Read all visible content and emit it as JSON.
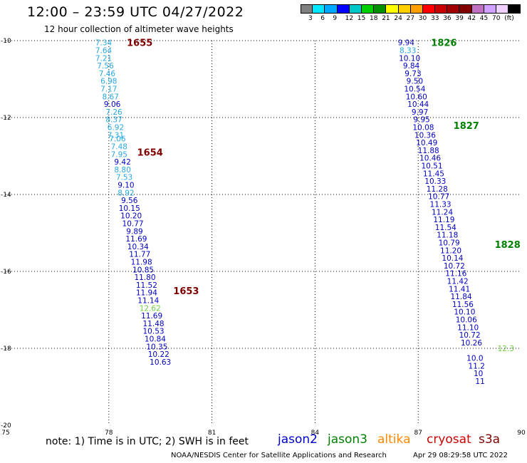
{
  "title": "12:00 – 23:59 UTC 04/27/2022",
  "subtitle": "12 hour collection of altimeter wave heights",
  "colorbar": {
    "colors": [
      "#808080",
      "#00e8ff",
      "#00a8ff",
      "#0000ff",
      "#00c8c8",
      "#00d000",
      "#009000",
      "#ffff00",
      "#ffd000",
      "#ffa000",
      "#ff0000",
      "#c80000",
      "#a00000",
      "#800000",
      "#c070c0",
      "#d0a0ff",
      "#f0d0ff",
      "#000000"
    ],
    "labels": [
      "3",
      "6",
      "9",
      "12",
      "15",
      "18",
      "21",
      "24",
      "27",
      "30",
      "33",
      "36",
      "39",
      "42",
      "45",
      "70",
      "(ft)"
    ]
  },
  "note": "note:  1) Time is in UTC;  2) SWH is in feet",
  "satellites": [
    {
      "name": "jason2",
      "color": "#0000cc"
    },
    {
      "name": "jason3",
      "color": "#008000"
    },
    {
      "name": "altika",
      "color": "#ff8800"
    },
    {
      "name": "cryosat",
      "color": "#cc0000"
    },
    {
      "name": "s3a",
      "color": "#800000"
    }
  ],
  "footer_left": "NOAA/NESDIS Center for Satellite Applications and Research",
  "footer_right": "Apr 29 08:29:58 UTC 2022",
  "chart_data": {
    "type": "scatter",
    "xlim": [
      75,
      90
    ],
    "ylim": [
      -20,
      -10
    ],
    "xticks": [
      75,
      78,
      81,
      84,
      87,
      90
    ],
    "yticks": [
      -10,
      -12,
      -14,
      -16,
      -18,
      -20
    ],
    "xtick_labels": [
      "75",
      "78",
      "81",
      "84",
      "87",
      "90"
    ],
    "ytick_labels": [
      "-10",
      "-12",
      "-14",
      "-16",
      "-18",
      "-20"
    ],
    "grid": true,
    "pass_labels": [
      {
        "text": "1655",
        "x": 78.9,
        "y": -10.05,
        "color": "#800000"
      },
      {
        "text": "1654",
        "x": 79.2,
        "y": -12.9,
        "color": "#800000"
      },
      {
        "text": "1653",
        "x": 80.25,
        "y": -16.5,
        "color": "#800000"
      },
      {
        "text": "1826",
        "x": 87.75,
        "y": -10.05,
        "color": "#008000"
      },
      {
        "text": "1827",
        "x": 88.4,
        "y": -12.2,
        "color": "#008000"
      },
      {
        "text": "1828",
        "x": 89.6,
        "y": -15.3,
        "color": "#008000"
      }
    ],
    "series": [
      {
        "color": "#29a8e0",
        "points": [
          {
            "x": 77.85,
            "y": -10.05,
            "label": "7.34"
          },
          {
            "x": 77.85,
            "y": -10.25,
            "label": "7.64"
          },
          {
            "x": 77.85,
            "y": -10.45,
            "label": "7.21"
          },
          {
            "x": 77.9,
            "y": -10.65,
            "label": "7.56"
          },
          {
            "x": 77.95,
            "y": -10.85,
            "label": "7.46"
          },
          {
            "x": 78.0,
            "y": -11.05,
            "label": "6.98"
          },
          {
            "x": 78.0,
            "y": -11.25,
            "label": "7.17"
          },
          {
            "x": 78.05,
            "y": -11.45,
            "label": "8.67"
          },
          {
            "x": 78.15,
            "y": -11.85,
            "label": "7.26"
          },
          {
            "x": 78.15,
            "y": -12.05,
            "label": "8.37"
          },
          {
            "x": 78.2,
            "y": -12.25,
            "label": "6.92"
          },
          {
            "x": 78.2,
            "y": -12.45,
            "label": "7.31"
          },
          {
            "x": 78.25,
            "y": -12.55,
            "label": "7.06"
          },
          {
            "x": 78.3,
            "y": -12.75,
            "label": "7.48"
          },
          {
            "x": 78.3,
            "y": -12.95,
            "label": "7.95"
          },
          {
            "x": 78.4,
            "y": -13.35,
            "label": "8.80"
          },
          {
            "x": 78.45,
            "y": -13.55,
            "label": "7.53"
          },
          {
            "x": 78.5,
            "y": -13.95,
            "label": "8.92"
          }
        ]
      },
      {
        "color": "#0000c0",
        "points": [
          {
            "x": 78.1,
            "y": -11.65,
            "label": "9.06"
          },
          {
            "x": 78.4,
            "y": -13.15,
            "label": "9.42"
          },
          {
            "x": 78.5,
            "y": -13.75,
            "label": "9.10"
          },
          {
            "x": 78.6,
            "y": -14.15,
            "label": "9.56"
          },
          {
            "x": 78.6,
            "y": -14.35,
            "label": "10.15"
          },
          {
            "x": 78.65,
            "y": -14.55,
            "label": "10.20"
          },
          {
            "x": 78.7,
            "y": -14.75,
            "label": "10.77"
          },
          {
            "x": 78.75,
            "y": -14.95,
            "label": "9.89"
          },
          {
            "x": 78.8,
            "y": -15.15,
            "label": "11.69"
          },
          {
            "x": 78.85,
            "y": -15.35,
            "label": "10.34"
          },
          {
            "x": 78.9,
            "y": -15.55,
            "label": "11.77"
          },
          {
            "x": 78.95,
            "y": -15.75,
            "label": "11.98"
          },
          {
            "x": 79.0,
            "y": -15.95,
            "label": "10.85"
          },
          {
            "x": 79.05,
            "y": -16.15,
            "label": "11.80"
          },
          {
            "x": 79.1,
            "y": -16.35,
            "label": "11.52"
          },
          {
            "x": 79.1,
            "y": -16.55,
            "label": "11.94"
          },
          {
            "x": 79.15,
            "y": -16.75,
            "label": "11.14"
          },
          {
            "x": 79.25,
            "y": -17.15,
            "label": "11.69"
          },
          {
            "x": 79.3,
            "y": -17.35,
            "label": "11.48"
          },
          {
            "x": 79.3,
            "y": -17.55,
            "label": "10.53"
          },
          {
            "x": 79.35,
            "y": -17.75,
            "label": "10.84"
          },
          {
            "x": 79.4,
            "y": -17.95,
            "label": "10.35"
          },
          {
            "x": 79.45,
            "y": -18.15,
            "label": "10.22"
          },
          {
            "x": 79.5,
            "y": -18.35,
            "label": "10.63"
          }
        ]
      },
      {
        "color": "#70d040",
        "points": [
          {
            "x": 79.2,
            "y": -16.95,
            "label": "12.62"
          },
          {
            "x": 89.55,
            "y": -18.0,
            "label": "12.3"
          }
        ]
      },
      {
        "color": "#0000c0",
        "points": [
          {
            "x": 86.65,
            "y": -10.05,
            "label": "9.94"
          },
          {
            "x": 86.75,
            "y": -10.45,
            "label": "10.10"
          },
          {
            "x": 86.8,
            "y": -10.65,
            "label": "9.84"
          },
          {
            "x": 86.85,
            "y": -10.85,
            "label": "9.73"
          },
          {
            "x": 86.9,
            "y": -11.05,
            "label": "9.50"
          },
          {
            "x": 86.9,
            "y": -11.25,
            "label": "10.54"
          },
          {
            "x": 86.95,
            "y": -11.45,
            "label": "10.60"
          },
          {
            "x": 87.0,
            "y": -11.65,
            "label": "10.44"
          },
          {
            "x": 87.05,
            "y": -11.85,
            "label": "9.97"
          },
          {
            "x": 87.1,
            "y": -12.05,
            "label": "9.95"
          },
          {
            "x": 87.15,
            "y": -12.25,
            "label": "10.08"
          },
          {
            "x": 87.2,
            "y": -12.45,
            "label": "10.36"
          },
          {
            "x": 87.25,
            "y": -12.65,
            "label": "10.49"
          },
          {
            "x": 87.3,
            "y": -12.85,
            "label": "11.88"
          },
          {
            "x": 87.35,
            "y": -13.05,
            "label": "10.46"
          },
          {
            "x": 87.4,
            "y": -13.25,
            "label": "10.51"
          },
          {
            "x": 87.45,
            "y": -13.45,
            "label": "11.45"
          },
          {
            "x": 87.5,
            "y": -13.65,
            "label": "10.33"
          },
          {
            "x": 87.55,
            "y": -13.85,
            "label": "11.28"
          },
          {
            "x": 87.6,
            "y": -14.05,
            "label": "10.77"
          },
          {
            "x": 87.65,
            "y": -14.25,
            "label": "11.33"
          },
          {
            "x": 87.7,
            "y": -14.45,
            "label": "11.24"
          },
          {
            "x": 87.75,
            "y": -14.65,
            "label": "11.19"
          },
          {
            "x": 87.8,
            "y": -14.85,
            "label": "11.54"
          },
          {
            "x": 87.85,
            "y": -15.05,
            "label": "11.18"
          },
          {
            "x": 87.9,
            "y": -15.25,
            "label": "10.79"
          },
          {
            "x": 87.95,
            "y": -15.45,
            "label": "11.20"
          },
          {
            "x": 88.0,
            "y": -15.65,
            "label": "10.14"
          },
          {
            "x": 88.05,
            "y": -15.85,
            "label": "10.72"
          },
          {
            "x": 88.1,
            "y": -16.05,
            "label": "11.16"
          },
          {
            "x": 88.15,
            "y": -16.25,
            "label": "11.42"
          },
          {
            "x": 88.2,
            "y": -16.45,
            "label": "11.41"
          },
          {
            "x": 88.25,
            "y": -16.65,
            "label": "11.84"
          },
          {
            "x": 88.3,
            "y": -16.85,
            "label": "11.56"
          },
          {
            "x": 88.35,
            "y": -17.05,
            "label": "10.10"
          },
          {
            "x": 88.4,
            "y": -17.25,
            "label": "10.06"
          },
          {
            "x": 88.45,
            "y": -17.45,
            "label": "11.10"
          },
          {
            "x": 88.5,
            "y": -17.65,
            "label": "10.72"
          },
          {
            "x": 88.55,
            "y": -17.85,
            "label": "10.26"
          },
          {
            "x": 88.65,
            "y": -18.25,
            "label": "10.0"
          },
          {
            "x": 88.7,
            "y": -18.45,
            "label": "11.2"
          },
          {
            "x": 88.75,
            "y": -18.65,
            "label": "10"
          },
          {
            "x": 88.8,
            "y": -18.85,
            "label": "11"
          }
        ]
      },
      {
        "color": "#29a8e0",
        "points": [
          {
            "x": 86.7,
            "y": -10.25,
            "label": "8.33"
          }
        ]
      }
    ]
  }
}
